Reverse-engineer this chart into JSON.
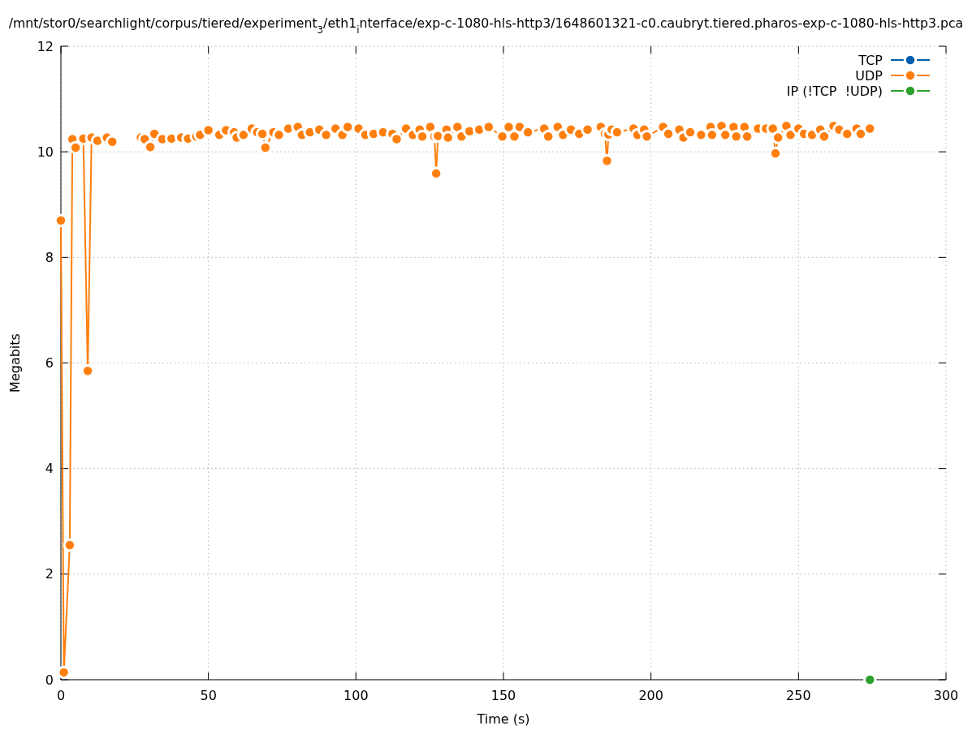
{
  "chart_data": {
    "type": "line",
    "title": "/mnt/stor0/searchlight/corpus/tiered/experiment$_{3}$/eth1$_{i}$nterface/exp-c-1080-hls-http3/1648601321-c0.caubryt.tiered.pharos-exp-c-1080-hls-http3.pca",
    "xlabel": "Time (s)",
    "ylabel": "Megabits",
    "xlim": [
      0,
      300
    ],
    "xticks": [
      0,
      50,
      100,
      150,
      200,
      250,
      300
    ],
    "ylim": [
      0,
      12
    ],
    "yticks": [
      0,
      2,
      4,
      6,
      8,
      10,
      12
    ],
    "grid": true,
    "legend": "top right",
    "marker": "circle",
    "line_style": "solid",
    "series": [
      {
        "name": "TCP",
        "color": "#0060ad"
      },
      {
        "name": "UDP",
        "color": "#ff7f0e",
        "x": [
          0,
          1.0,
          3.0,
          3.9,
          5.0,
          7.6,
          9.1,
          10.4,
          12.4,
          15.6,
          17.4,
          22,
          27.1,
          28.4,
          30.3,
          31.7,
          34.4,
          37.5,
          40.8,
          43.1,
          45.9,
          47.2,
          50.0,
          53.7,
          56.0,
          58.7,
          59.6,
          61.9,
          64.7,
          66.5,
          68.3,
          69.3,
          72.0,
          73.9,
          77.1,
          80.3,
          81.7,
          84.4,
          87.6,
          89.9,
          93.1,
          95.4,
          97.2,
          100.9,
          103.2,
          106.0,
          109.2,
          112.4,
          113.8,
          117.0,
          119.3,
          121.6,
          122.5,
          125.2,
          126.6,
          127.2,
          127.8,
          130.7,
          131.2,
          134.4,
          135.8,
          138.5,
          141.8,
          145.0,
          149.6,
          151.8,
          153.7,
          155.5,
          158.3,
          163.8,
          165.2,
          168.4,
          170.2,
          172.9,
          175.7,
          178.5,
          183.0,
          184.4,
          185.1,
          185.6,
          186.7,
          188.5,
          194.1,
          195.4,
          197.7,
          198.6,
          204.1,
          205.9,
          209.6,
          211.0,
          213.3,
          217.0,
          220.2,
          220.7,
          223.9,
          225.2,
          228.0,
          228.9,
          231.7,
          232.6,
          236.3,
          239.0,
          241.3,
          242.2,
          243.1,
          245.9,
          247.3,
          250.0,
          251.9,
          254.6,
          257.4,
          258.7,
          261.9,
          263.8,
          266.5,
          269.7,
          271.1,
          274.2
        ],
        "values": [
          8.7,
          0.14,
          2.55,
          10.24,
          10.08,
          10.25,
          5.85,
          10.27,
          10.21,
          10.27,
          10.19,
          null,
          10.27,
          10.24,
          10.09,
          10.34,
          10.24,
          10.25,
          10.27,
          10.25,
          10.29,
          10.32,
          10.41,
          10.32,
          10.41,
          10.37,
          10.27,
          10.32,
          10.44,
          10.37,
          10.34,
          10.08,
          10.37,
          10.32,
          10.44,
          10.47,
          10.32,
          10.37,
          10.42,
          10.32,
          10.44,
          10.32,
          10.47,
          10.44,
          10.32,
          10.34,
          10.37,
          10.34,
          10.24,
          10.44,
          10.32,
          10.42,
          10.29,
          10.47,
          10.29,
          9.59,
          10.3,
          10.42,
          10.27,
          10.47,
          10.29,
          10.39,
          10.42,
          10.47,
          10.29,
          10.47,
          10.29,
          10.47,
          10.37,
          10.44,
          10.29,
          10.47,
          10.32,
          10.42,
          10.34,
          10.42,
          10.47,
          10.34,
          9.83,
          10.33,
          10.42,
          10.37,
          10.44,
          10.32,
          10.42,
          10.29,
          10.47,
          10.34,
          10.42,
          10.27,
          10.37,
          10.32,
          10.47,
          10.32,
          10.49,
          10.32,
          10.47,
          10.29,
          10.47,
          10.29,
          10.44,
          10.44,
          10.44,
          9.97,
          10.27,
          10.49,
          10.32,
          10.44,
          10.34,
          10.32,
          10.42,
          10.29,
          10.49,
          10.42,
          10.34,
          10.44,
          10.34,
          10.44
        ]
      },
      {
        "name": "IP (!TCP  !UDP)",
        "color": "#2ca02c",
        "x": [
          274.2
        ],
        "values": [
          0
        ]
      }
    ]
  }
}
